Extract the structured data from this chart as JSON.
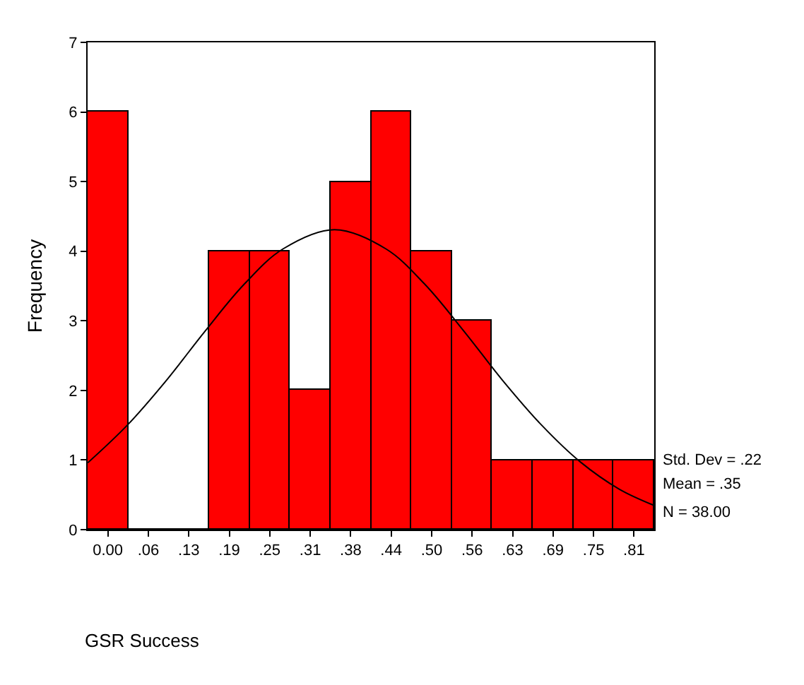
{
  "chart_data": {
    "type": "histogram",
    "xlabel": "GSR Success",
    "ylabel": "Frequency",
    "bins": [
      -0.03125,
      0.03125,
      0.09375,
      0.15625,
      0.21875,
      0.28125,
      0.34375,
      0.40625,
      0.46875,
      0.53125,
      0.59375,
      0.65625,
      0.71875,
      0.78125,
      0.84375
    ],
    "values": [
      6,
      0,
      0,
      4,
      4,
      2,
      5,
      6,
      4,
      3,
      1,
      1,
      1,
      1
    ],
    "color": "#ff0000",
    "series": [
      {
        "type": "line",
        "color": "#000000",
        "x": [
          -0.031,
          0.03,
          0.09,
          0.15,
          0.21,
          0.27,
          0.35,
          0.43,
          0.49,
          0.55,
          0.61,
          0.67,
          0.73,
          0.79,
          0.843
        ],
        "values": [
          0.96,
          1.5,
          2.14,
          2.85,
          3.52,
          4.03,
          4.31,
          4.03,
          3.52,
          2.85,
          2.14,
          1.5,
          0.97,
          0.58,
          0.35
        ]
      }
    ],
    "xlim": [
      -0.03125,
      0.84375
    ],
    "xticks": [
      {
        "value": 0,
        "label": "0.00"
      },
      {
        "value": 0.0625,
        "label": ".06"
      },
      {
        "value": 0.125,
        "label": ".13"
      },
      {
        "value": 0.1875,
        "label": ".19"
      },
      {
        "value": 0.25,
        "label": ".25"
      },
      {
        "value": 0.3125,
        "label": ".31"
      },
      {
        "value": 0.375,
        "label": ".38"
      },
      {
        "value": 0.4375,
        "label": ".44"
      },
      {
        "value": 0.5,
        "label": ".50"
      },
      {
        "value": 0.5625,
        "label": ".56"
      },
      {
        "value": 0.625,
        "label": ".63"
      },
      {
        "value": 0.6875,
        "label": ".69"
      },
      {
        "value": 0.75,
        "label": ".75"
      },
      {
        "value": 0.8125,
        "label": ".81"
      }
    ],
    "ylim": [
      0,
      7
    ],
    "yticks": [
      0,
      1,
      2,
      3,
      4,
      5,
      6,
      7
    ],
    "annotations": [
      "Std. Dev = .22",
      "Mean = .35",
      "N = 38.00"
    ]
  }
}
